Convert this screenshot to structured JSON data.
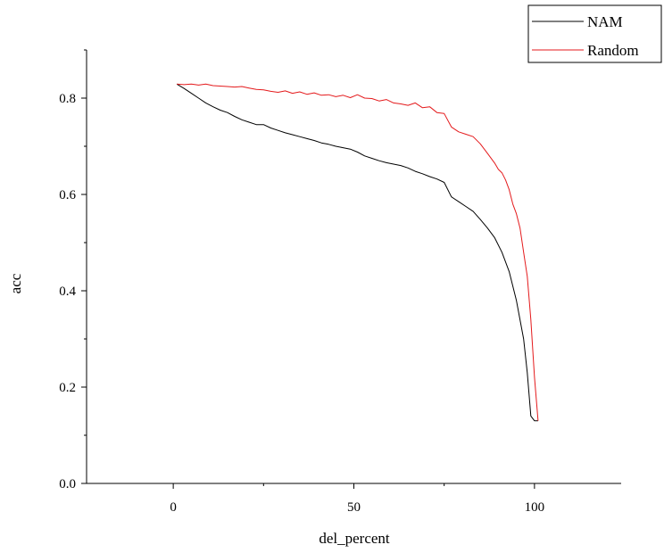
{
  "chart_data": {
    "type": "line",
    "title": "",
    "xlabel": "del_percent",
    "ylabel": "acc",
    "xlim": [
      -24,
      124
    ],
    "ylim": [
      0,
      0.9
    ],
    "xticks": [
      0,
      50,
      100
    ],
    "yticks": [
      0.0,
      0.2,
      0.4,
      0.6,
      0.8
    ],
    "xtick_labels": [
      "0",
      "50",
      "100"
    ],
    "ytick_labels": [
      "0.0",
      "0.2",
      "0.4",
      "0.6",
      "0.8"
    ],
    "grid": false,
    "legend_position": "top-right",
    "series": [
      {
        "name": "NAM",
        "color": "#000000",
        "x": [
          1,
          3,
          5,
          7,
          9,
          11,
          13,
          15,
          17,
          19,
          21,
          23,
          25,
          27,
          29,
          31,
          33,
          35,
          37,
          39,
          41,
          43,
          45,
          47,
          49,
          51,
          53,
          55,
          57,
          59,
          61,
          63,
          65,
          67,
          69,
          71,
          73,
          75,
          77,
          79,
          81,
          83,
          85,
          87,
          89,
          91,
          93,
          95,
          97,
          98,
          99,
          100,
          101
        ],
        "y": [
          0.829,
          0.82,
          0.81,
          0.8,
          0.79,
          0.782,
          0.775,
          0.77,
          0.762,
          0.755,
          0.75,
          0.745,
          0.745,
          0.738,
          0.733,
          0.728,
          0.724,
          0.72,
          0.716,
          0.712,
          0.707,
          0.704,
          0.7,
          0.697,
          0.694,
          0.688,
          0.68,
          0.675,
          0.67,
          0.666,
          0.663,
          0.66,
          0.655,
          0.648,
          0.643,
          0.637,
          0.632,
          0.625,
          0.595,
          0.585,
          0.575,
          0.565,
          0.548,
          0.53,
          0.51,
          0.48,
          0.44,
          0.38,
          0.3,
          0.23,
          0.14,
          0.13,
          0.13
        ]
      },
      {
        "name": "Random",
        "color": "#e41a1c",
        "x": [
          1,
          3,
          5,
          7,
          9,
          11,
          13,
          15,
          17,
          19,
          21,
          23,
          25,
          27,
          29,
          31,
          33,
          35,
          37,
          39,
          41,
          43,
          45,
          47,
          49,
          51,
          53,
          55,
          57,
          59,
          61,
          63,
          65,
          67,
          69,
          71,
          73,
          75,
          77,
          79,
          81,
          83,
          85,
          87,
          89,
          90,
          91,
          92,
          93,
          94,
          95,
          96,
          97,
          98,
          99,
          100,
          101
        ],
        "y": [
          0.829,
          0.828,
          0.829,
          0.827,
          0.829,
          0.826,
          0.825,
          0.824,
          0.823,
          0.824,
          0.821,
          0.818,
          0.817,
          0.814,
          0.812,
          0.815,
          0.81,
          0.813,
          0.808,
          0.811,
          0.806,
          0.807,
          0.803,
          0.806,
          0.801,
          0.807,
          0.8,
          0.799,
          0.794,
          0.797,
          0.79,
          0.788,
          0.785,
          0.79,
          0.78,
          0.782,
          0.77,
          0.768,
          0.74,
          0.73,
          0.725,
          0.72,
          0.705,
          0.685,
          0.665,
          0.652,
          0.645,
          0.63,
          0.61,
          0.58,
          0.56,
          0.53,
          0.48,
          0.43,
          0.34,
          0.22,
          0.13
        ]
      }
    ]
  }
}
